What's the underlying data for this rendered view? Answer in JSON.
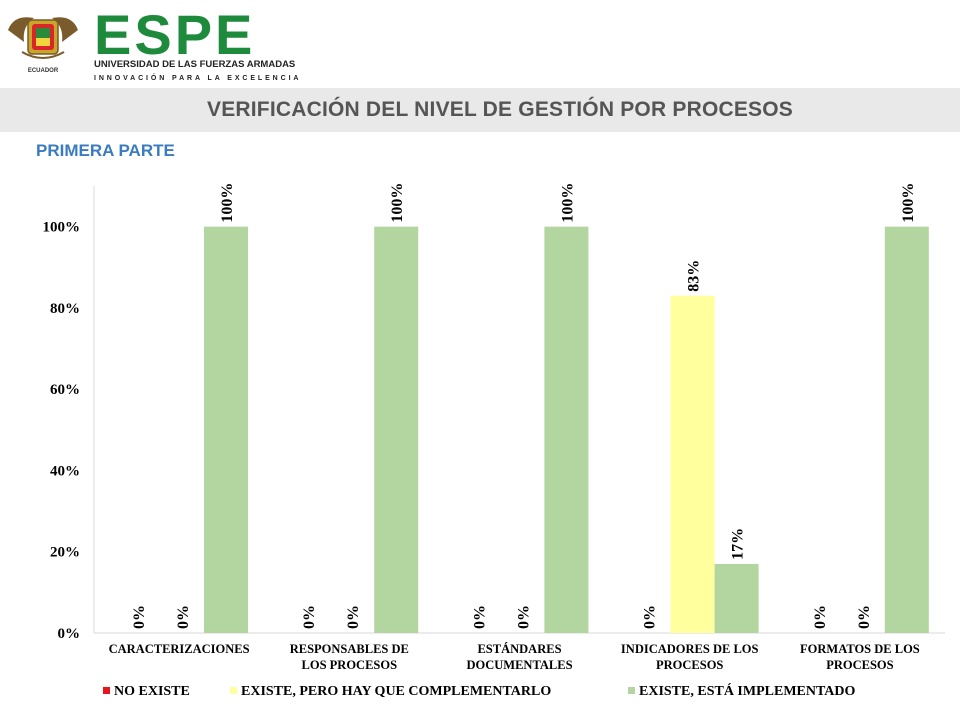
{
  "header": {
    "logo_text": "ESPE",
    "logo_subtitle": "UNIVERSIDAD DE LAS FUERZAS ARMADAS",
    "logo_tagline": "INNOVACIÓN PARA LA EXCELENCIA",
    "seal_text": "ECUADOR"
  },
  "slide": {
    "title": "VERIFICACIÓN DEL NIVEL DE GESTIÓN POR PROCESOS",
    "subtitle": "PRIMERA PARTE"
  },
  "colors": {
    "no_existe": "#e8141e",
    "complementar": "#ffff9e",
    "implementado": "#b3d59f",
    "accent_blue": "#3b7bbf",
    "logo_green": "#1e8a3c"
  },
  "chart_data": {
    "type": "bar",
    "categories": [
      [
        "CARACTERIZACIONES"
      ],
      [
        "RESPONSABLES DE",
        "LOS PROCESOS"
      ],
      [
        "ESTÁNDARES",
        "DOCUMENTALES"
      ],
      [
        "INDICADORES DE LOS",
        "PROCESOS"
      ],
      [
        "FORMATOS DE LOS",
        "PROCESOS"
      ]
    ],
    "series": [
      {
        "name": "NO EXISTE",
        "color": "#e8141e",
        "values": [
          0,
          0,
          0,
          0,
          0
        ],
        "labels": [
          "0%",
          "0%",
          "0%",
          "0%",
          "0%"
        ]
      },
      {
        "name": "EXISTE, PERO HAY QUE COMPLEMENTARLO",
        "color": "#ffff9e",
        "values": [
          0,
          0,
          0,
          83,
          0
        ],
        "labels": [
          "0%",
          "0%",
          "0%",
          "83%",
          "0%"
        ]
      },
      {
        "name": "EXISTE, ESTÁ IMPLEMENTADO",
        "color": "#b3d59f",
        "values": [
          100,
          100,
          100,
          17,
          100
        ],
        "labels": [
          "100%",
          "100%",
          "100%",
          "17%",
          "100%"
        ]
      }
    ],
    "y_ticks": [
      "0%",
      "20%",
      "40%",
      "60%",
      "80%",
      "100%"
    ],
    "ylim": [
      0,
      110
    ],
    "grid": false,
    "legend": "bottom"
  }
}
